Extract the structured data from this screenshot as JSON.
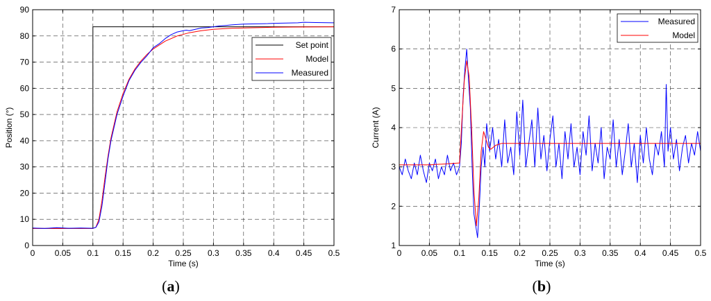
{
  "panels": {
    "a": {
      "open": "(",
      "letter": "a",
      "close": ")"
    },
    "b": {
      "open": "(",
      "letter": "b",
      "close": ")"
    }
  },
  "chart_data": [
    {
      "id": "a",
      "type": "line",
      "xlabel": "Time (s)",
      "ylabel": "Position (°)",
      "xlim": [
        0,
        0.5
      ],
      "ylim": [
        0,
        90
      ],
      "xticks": [
        0,
        0.05,
        0.1,
        0.15,
        0.2,
        0.25,
        0.3,
        0.35,
        0.4,
        0.45,
        0.5
      ],
      "xtick_labels": [
        "0",
        "0.05",
        "0.1",
        "0.15",
        "0.2",
        "0.25",
        "0.3",
        "0.35",
        "0.4",
        "0.45",
        "0.5"
      ],
      "yticks": [
        0,
        10,
        20,
        30,
        40,
        50,
        60,
        70,
        80,
        90
      ],
      "ytick_labels": [
        "0",
        "10",
        "20",
        "30",
        "40",
        "50",
        "60",
        "70",
        "80",
        "90"
      ],
      "grid": true,
      "legend_position": "top-right",
      "series": [
        {
          "name": "Set point",
          "color": "#000000",
          "x": [
            0,
            0.1,
            0.1,
            0.5
          ],
          "y": [
            6.5,
            6.5,
            83.5,
            83.5
          ]
        },
        {
          "name": "Model",
          "color": "#ff0000",
          "x": [
            0,
            0.1,
            0.105,
            0.11,
            0.115,
            0.12,
            0.125,
            0.13,
            0.14,
            0.15,
            0.16,
            0.17,
            0.18,
            0.19,
            0.2,
            0.22,
            0.24,
            0.26,
            0.28,
            0.3,
            0.33,
            0.36,
            0.4,
            0.45,
            0.5
          ],
          "y": [
            6.5,
            6.5,
            7,
            10,
            17,
            26,
            34,
            41,
            51,
            58,
            63.5,
            67.5,
            70.5,
            73,
            75,
            78,
            80,
            81.2,
            82,
            82.5,
            82.9,
            83.1,
            83.3,
            83.4,
            83.5
          ]
        },
        {
          "name": "Measured",
          "color": "#0000ff",
          "x": [
            0,
            0.02,
            0.04,
            0.06,
            0.08,
            0.1,
            0.105,
            0.11,
            0.115,
            0.12,
            0.125,
            0.13,
            0.14,
            0.15,
            0.16,
            0.17,
            0.18,
            0.19,
            0.2,
            0.21,
            0.22,
            0.23,
            0.24,
            0.25,
            0.255,
            0.26,
            0.27,
            0.28,
            0.29,
            0.3,
            0.31,
            0.32,
            0.33,
            0.35,
            0.37,
            0.39,
            0.4,
            0.42,
            0.44,
            0.45,
            0.47,
            0.5
          ],
          "y": [
            6.7,
            6.5,
            6.8,
            6.6,
            6.7,
            6.6,
            6.9,
            9,
            15,
            24,
            33,
            40,
            50,
            57,
            63,
            67,
            70,
            72.5,
            75.5,
            77,
            79,
            80.5,
            81.5,
            82,
            82.2,
            82,
            82.5,
            83,
            83.2,
            83.5,
            83.8,
            84,
            84.2,
            84.5,
            84.6,
            84.7,
            84.8,
            84.9,
            85,
            85.2,
            85.1,
            85
          ]
        }
      ]
    },
    {
      "id": "b",
      "type": "line",
      "xlabel": "Time (s)",
      "ylabel": "Current (A)",
      "xlim": [
        0,
        0.5
      ],
      "ylim": [
        1,
        7
      ],
      "xticks": [
        0,
        0.05,
        0.1,
        0.15,
        0.2,
        0.25,
        0.3,
        0.35,
        0.4,
        0.45,
        0.5
      ],
      "xtick_labels": [
        "0",
        "0.05",
        "0.1",
        "0.15",
        "0.2",
        "0.25",
        "0.3",
        "0.35",
        "0.4",
        "0.45",
        "0.5"
      ],
      "yticks": [
        1,
        2,
        3,
        4,
        5,
        6,
        7
      ],
      "ytick_labels": [
        "1",
        "2",
        "3",
        "4",
        "5",
        "6",
        "7"
      ],
      "grid": true,
      "legend_position": "top-right",
      "series": [
        {
          "name": "Measured",
          "color": "#0000ff",
          "x": [
            0,
            0.005,
            0.01,
            0.015,
            0.02,
            0.025,
            0.03,
            0.035,
            0.04,
            0.045,
            0.05,
            0.055,
            0.06,
            0.065,
            0.07,
            0.075,
            0.08,
            0.085,
            0.09,
            0.095,
            0.1,
            0.103,
            0.106,
            0.109,
            0.112,
            0.115,
            0.118,
            0.121,
            0.124,
            0.127,
            0.13,
            0.133,
            0.136,
            0.139,
            0.142,
            0.145,
            0.15,
            0.155,
            0.16,
            0.165,
            0.17,
            0.175,
            0.18,
            0.185,
            0.19,
            0.195,
            0.2,
            0.205,
            0.21,
            0.215,
            0.22,
            0.225,
            0.23,
            0.235,
            0.24,
            0.245,
            0.25,
            0.255,
            0.26,
            0.265,
            0.27,
            0.275,
            0.28,
            0.285,
            0.29,
            0.295,
            0.3,
            0.305,
            0.31,
            0.315,
            0.32,
            0.325,
            0.33,
            0.335,
            0.34,
            0.345,
            0.35,
            0.355,
            0.36,
            0.365,
            0.37,
            0.375,
            0.38,
            0.385,
            0.39,
            0.395,
            0.4,
            0.405,
            0.41,
            0.415,
            0.42,
            0.425,
            0.43,
            0.435,
            0.44,
            0.443,
            0.446,
            0.45,
            0.455,
            0.46,
            0.465,
            0.47,
            0.475,
            0.48,
            0.485,
            0.49,
            0.495,
            0.5
          ],
          "y": [
            3.0,
            2.8,
            3.2,
            2.9,
            2.7,
            3.1,
            2.8,
            3.3,
            2.9,
            2.6,
            3.1,
            2.9,
            3.2,
            2.7,
            3.0,
            2.8,
            3.3,
            2.9,
            3.1,
            2.8,
            3.0,
            3.6,
            4.8,
            5.5,
            6.0,
            5.2,
            4.5,
            3.0,
            1.8,
            1.5,
            1.2,
            2.0,
            3.0,
            3.5,
            3.0,
            4.1,
            3.4,
            4.0,
            3.2,
            3.7,
            3.0,
            4.2,
            3.1,
            3.5,
            2.8,
            4.4,
            3.3,
            4.7,
            3.0,
            3.6,
            4.2,
            3.0,
            4.5,
            3.2,
            3.8,
            2.9,
            3.7,
            4.3,
            3.0,
            3.6,
            2.7,
            3.9,
            3.2,
            4.1,
            3.0,
            3.5,
            2.8,
            3.9,
            3.3,
            4.3,
            2.9,
            3.6,
            3.1,
            4.0,
            2.7,
            3.5,
            3.2,
            4.2,
            3.0,
            3.7,
            2.8,
            3.4,
            4.1,
            3.0,
            3.6,
            2.6,
            3.8,
            3.1,
            4.0,
            3.2,
            2.8,
            3.6,
            3.3,
            3.9,
            3.0,
            5.1,
            3.4,
            4.0,
            3.2,
            3.7,
            2.9,
            3.5,
            3.8,
            3.1,
            3.6,
            3.3,
            3.9,
            3.4
          ]
        },
        {
          "name": "Model",
          "color": "#ff0000",
          "x": [
            0,
            0.05,
            0.1,
            0.104,
            0.108,
            0.112,
            0.116,
            0.12,
            0.124,
            0.128,
            0.132,
            0.136,
            0.14,
            0.144,
            0.148,
            0.152,
            0.16,
            0.17,
            0.2,
            0.25,
            0.3,
            0.35,
            0.4,
            0.45,
            0.5
          ],
          "y": [
            3.05,
            3.05,
            3.1,
            4.2,
            5.2,
            5.7,
            5.3,
            4.0,
            2.4,
            1.5,
            2.2,
            3.4,
            3.9,
            3.7,
            3.5,
            3.45,
            3.55,
            3.6,
            3.6,
            3.6,
            3.6,
            3.6,
            3.6,
            3.6,
            3.6
          ]
        }
      ]
    }
  ]
}
